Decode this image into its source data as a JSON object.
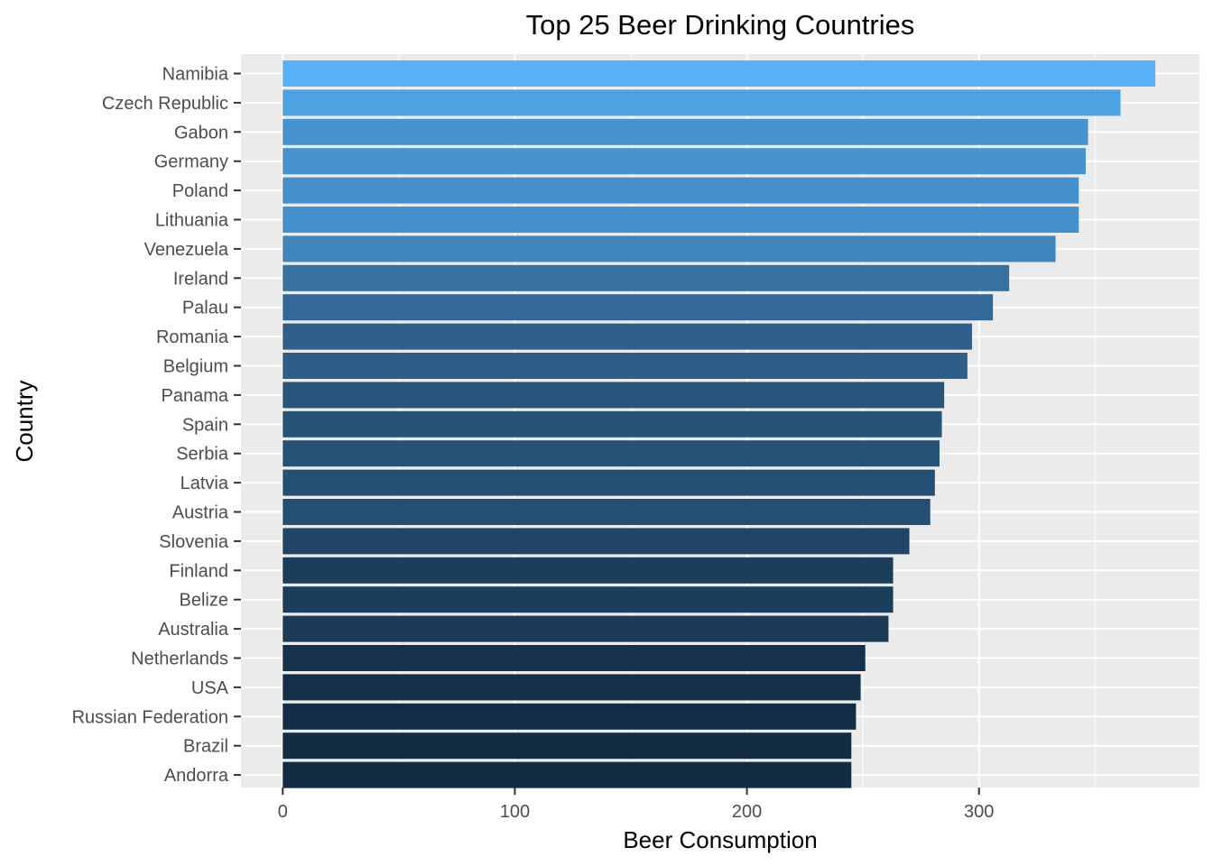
{
  "chart_data": {
    "type": "bar",
    "orientation": "horizontal",
    "title": "Top 25 Beer Drinking Countries",
    "xlabel": "Beer Consumption",
    "ylabel": "Country",
    "xlim": [
      -18,
      395
    ],
    "xticks": [
      0,
      100,
      200,
      300
    ],
    "grid": true,
    "legend": "none",
    "color_low": "#132B43",
    "color_high": "#56B1F7",
    "categories": [
      "Namibia",
      "Czech Republic",
      "Gabon",
      "Germany",
      "Poland",
      "Lithuania",
      "Venezuela",
      "Ireland",
      "Palau",
      "Romania",
      "Belgium",
      "Panama",
      "Spain",
      "Serbia",
      "Latvia",
      "Austria",
      "Slovenia",
      "Finland",
      "Belize",
      "Australia",
      "Netherlands",
      "USA",
      "Russian Federation",
      "Brazil",
      "Andorra"
    ],
    "values": [
      376,
      361,
      347,
      346,
      343,
      343,
      333,
      313,
      306,
      297,
      295,
      285,
      284,
      283,
      281,
      279,
      270,
      263,
      263,
      261,
      251,
      249,
      247,
      245,
      245
    ]
  }
}
